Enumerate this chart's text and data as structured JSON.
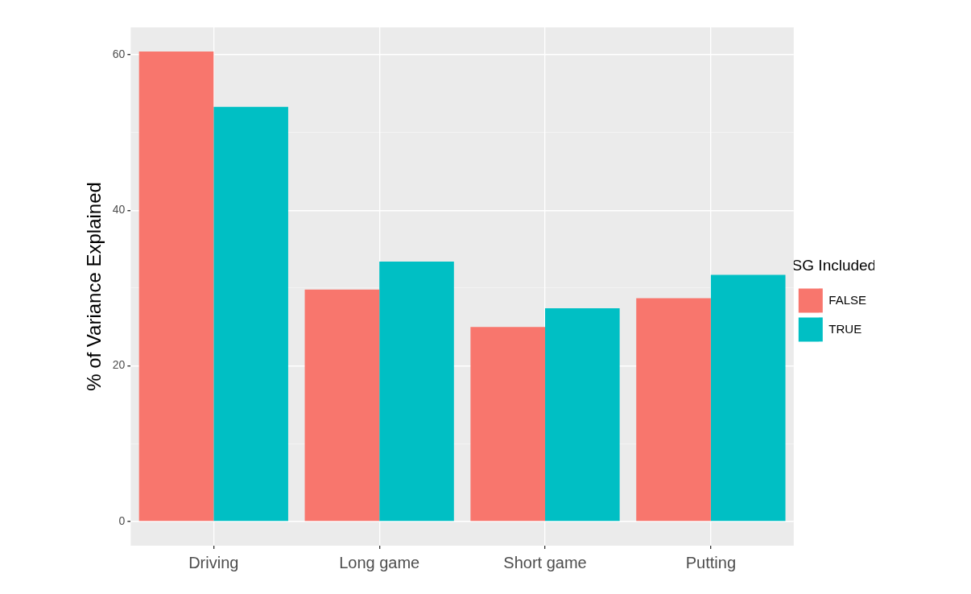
{
  "chart_data": {
    "type": "bar",
    "ylabel": "% of Variance Explained",
    "legend_title": "SG Included",
    "categories": [
      "Driving",
      "Long game",
      "Short game",
      "Putting"
    ],
    "series": [
      {
        "name": "FALSE",
        "color": "#f8766d",
        "values": [
          60.4,
          29.8,
          25.0,
          28.7
        ]
      },
      {
        "name": "TRUE",
        "color": "#00bfc4",
        "values": [
          53.3,
          33.4,
          27.4,
          31.7
        ]
      }
    ],
    "ylim": [
      -3.1,
      63.5
    ],
    "yticks": [
      0,
      {
        "value": 10,
        "label": null
      },
      20,
      {
        "value": 30,
        "label": null
      },
      40,
      {
        "value": 50,
        "label": null
      },
      60
    ],
    "grid": true,
    "legend": "right"
  }
}
